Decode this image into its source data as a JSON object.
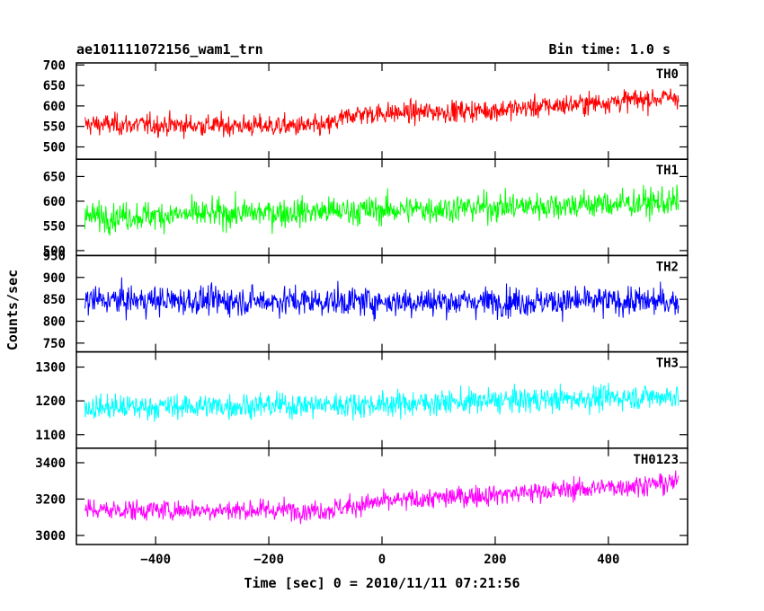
{
  "chart_data": {
    "type": "line",
    "title": "ae101111072156_wam1_trn",
    "subtitle": "Bin time: 1.0 s",
    "xlabel": "Time [sec] 0 = 2010/11/11 07:21:56",
    "ylabel": "Counts/sec",
    "xlim": [
      -540,
      540
    ],
    "x_ticks": [
      -400,
      -200,
      0,
      200,
      400
    ],
    "x_tick_labels": [
      "−400",
      "−200",
      "0",
      "200",
      "400"
    ],
    "x_range": [
      -525,
      524
    ],
    "panels": [
      {
        "name": "TH0",
        "color": "#ff0000",
        "ylim": [
          470,
          705
        ],
        "y_ticks": [
          500,
          550,
          600,
          650,
          700
        ],
        "trend": [
          [
            -525,
            555
          ],
          [
            -100,
            550
          ],
          [
            -50,
            580
          ],
          [
            200,
            590
          ],
          [
            524,
            622
          ]
        ],
        "noise": 32
      },
      {
        "name": "TH1",
        "color": "#00ff00",
        "ylim": [
          490,
          685
        ],
        "y_ticks": [
          500,
          550,
          600,
          650
        ],
        "trend": [
          [
            -525,
            568
          ],
          [
            0,
            582
          ],
          [
            524,
            598
          ]
        ],
        "noise": 35
      },
      {
        "name": "TH2",
        "color": "#0000ff",
        "ylim": [
          730,
          950
        ],
        "y_ticks": [
          750,
          800,
          850,
          900,
          950
        ],
        "trend": [
          [
            -525,
            848
          ],
          [
            0,
            845
          ],
          [
            524,
            845
          ]
        ],
        "noise": 40
      },
      {
        "name": "TH3",
        "color": "#00ffff",
        "ylim": [
          1060,
          1345
        ],
        "y_ticks": [
          1100,
          1200,
          1300
        ],
        "trend": [
          [
            -525,
            1180
          ],
          [
            0,
            1190
          ],
          [
            524,
            1215
          ]
        ],
        "noise": 45
      },
      {
        "name": "TH0123",
        "color": "#ff00ff",
        "ylim": [
          2950,
          3480
        ],
        "y_ticks": [
          3000,
          3200,
          3400
        ],
        "trend": [
          [
            -525,
            3140
          ],
          [
            -100,
            3140
          ],
          [
            0,
            3185
          ],
          [
            524,
            3290
          ]
        ],
        "noise": 70
      }
    ]
  }
}
